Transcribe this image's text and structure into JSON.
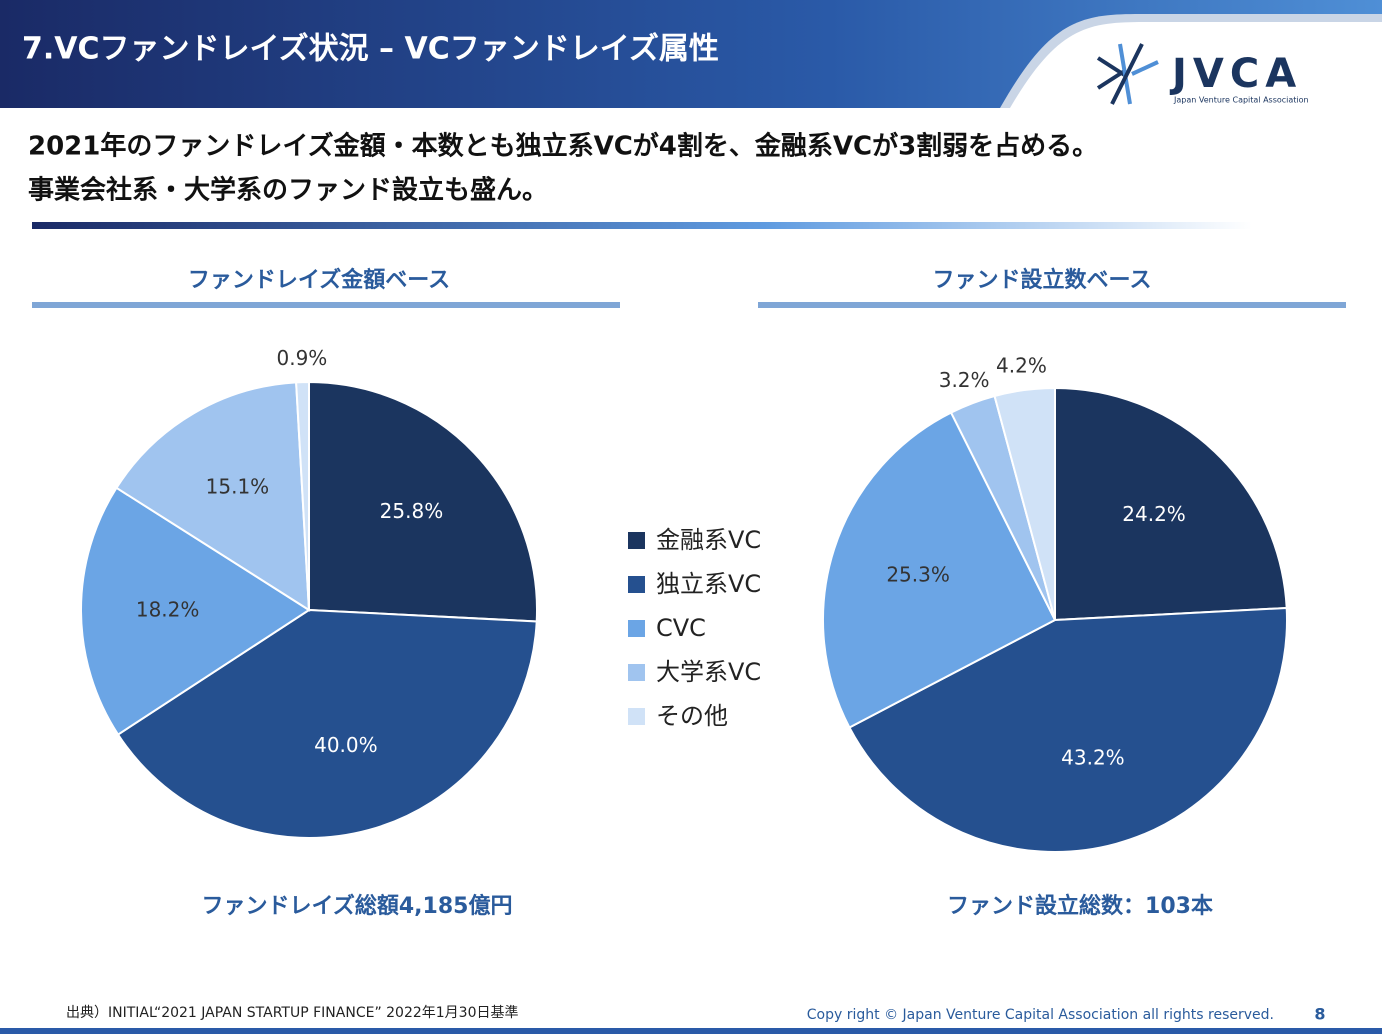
{
  "header": {
    "title": "7.VCファンドレイズ状況 – VCファンドレイズ属性",
    "logo": "JVCA",
    "logo_sub": "Japan Venture Capital Association"
  },
  "headline": [
    "2021年のファンドレイズ金額・本数とも独立系VCが4割を、金融系VCが3割弱を占める。",
    "事業会社系・大学系のファンド設立も盛ん。"
  ],
  "chart_data": [
    {
      "type": "pie",
      "title": "ファンドレイズ金額ベース",
      "annotation": "ファンドレイズ総額4,185億円",
      "categories": [
        "金融系VC",
        "独立系VC",
        "CVC",
        "大学系VC",
        "その他"
      ],
      "values": [
        25.8,
        40.0,
        18.2,
        15.1,
        0.9
      ],
      "value_labels": [
        "25.8%",
        "40.0%",
        "18.2%",
        "15.1%",
        "0.9%"
      ],
      "colors": [
        "#1b355f",
        "#25508f",
        "#6ba5e5",
        "#a0c4ef",
        "#d0e2f7"
      ]
    },
    {
      "type": "pie",
      "title": "ファンド設立数ベース",
      "annotation": "ファンド設立総数：103本",
      "categories": [
        "金融系VC",
        "独立系VC",
        "CVC",
        "大学系VC",
        "その他"
      ],
      "values": [
        24.2,
        43.2,
        25.3,
        3.2,
        4.2
      ],
      "value_labels": [
        "24.2%",
        "43.2%",
        "25.3%",
        "3.2%",
        "4.2%"
      ],
      "colors": [
        "#1b355f",
        "#25508f",
        "#6ba5e5",
        "#a0c4ef",
        "#d0e2f7"
      ]
    }
  ],
  "footer": {
    "source": "出典）INITIAL“2021 JAPAN STARTUP FINANCE” 2022年1月30日基準",
    "copyright": "Copy right © Japan Venture Capital Association all rights reserved.",
    "page": "8"
  }
}
